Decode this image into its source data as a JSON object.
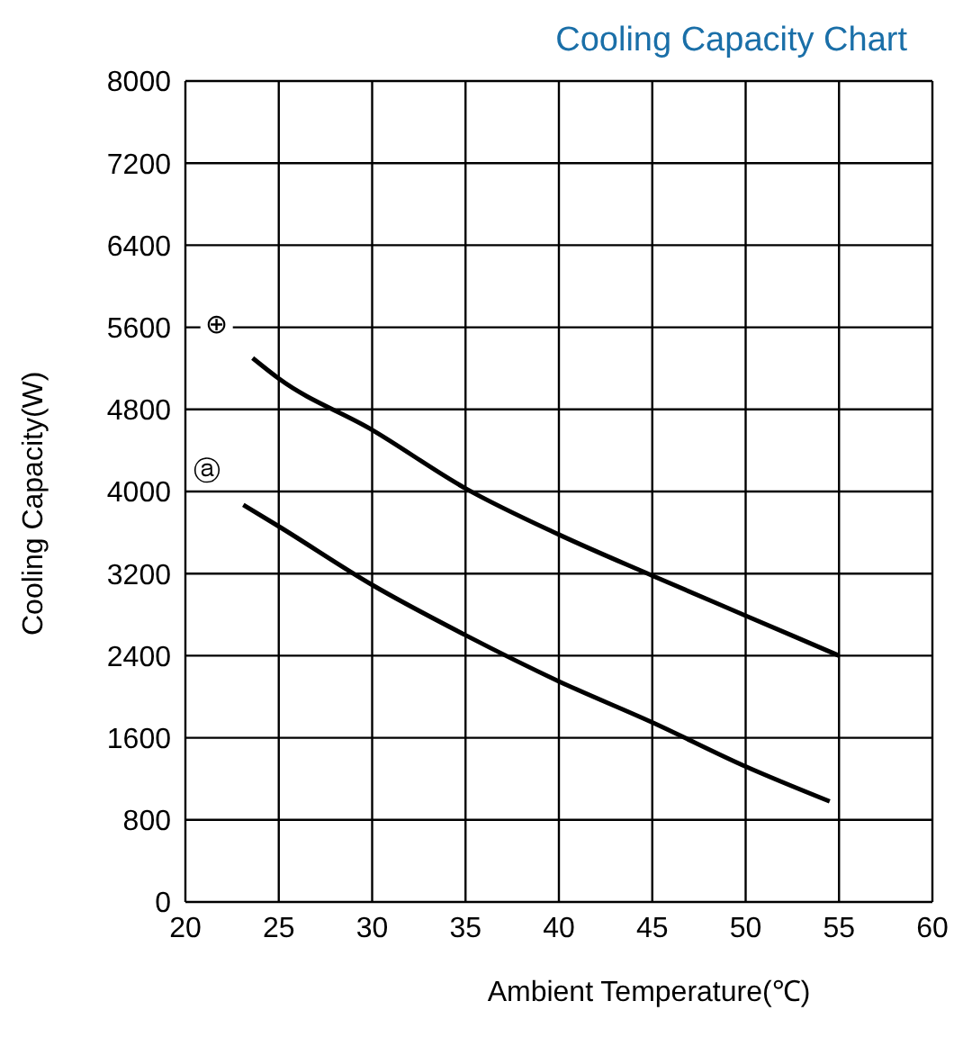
{
  "chart_data": {
    "type": "line",
    "title": "Cooling Capacity Chart",
    "xlabel": "Ambient Temperature(℃)",
    "ylabel": "Cooling  Capacity(W)",
    "series": [
      {
        "name": "⊕",
        "color": "#000000",
        "x": [
          23.6,
          25,
          30,
          35,
          40,
          45,
          50,
          55
        ],
        "values": [
          5300,
          5100,
          4600,
          4030,
          3580,
          3180,
          2790,
          2400
        ]
      },
      {
        "name": "ⓐ",
        "color": "#000000",
        "x": [
          23.1,
          25,
          30,
          35,
          40,
          45,
          50,
          54.5
        ],
        "values": [
          3870,
          3660,
          3090,
          2600,
          2150,
          1750,
          1320,
          980
        ]
      }
    ],
    "xlim": [
      20,
      60
    ],
    "xticks": [
      20,
      25,
      30,
      35,
      40,
      45,
      50,
      55,
      60
    ],
    "ylim": [
      0,
      8000
    ],
    "yticks": [
      0,
      800,
      1600,
      2400,
      3200,
      4000,
      4800,
      5600,
      6400,
      7200,
      8000
    ],
    "grid": true,
    "marker": "none",
    "line_style": "solid",
    "legend": false
  }
}
